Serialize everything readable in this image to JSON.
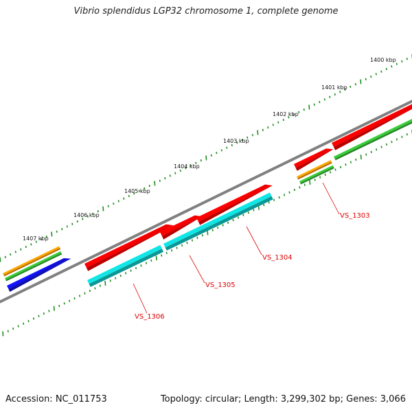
{
  "header": {
    "title": "Vibrio splendidus LGP32 chromosome 1, complete genome"
  },
  "footer": {
    "accession": "Accession: NC_011753",
    "summary": "Topology: circular; Length: 3,299,302 bp; Genes: 3,066"
  },
  "scale": {
    "unit": "kbp",
    "ticks": [
      {
        "label": "1400 kbp"
      },
      {
        "label": "1401 kbp"
      },
      {
        "label": "1402 kbp"
      },
      {
        "label": "1403 kbp"
      },
      {
        "label": "1404 kbp"
      },
      {
        "label": "1405 kbp"
      },
      {
        "label": "1406 kbp"
      },
      {
        "label": "1407 kbp"
      }
    ]
  },
  "genes": [
    {
      "label": "VS_1303"
    },
    {
      "label": "VS_1304"
    },
    {
      "label": "VS_1305"
    },
    {
      "label": "VS_1306"
    }
  ],
  "colors": {
    "backbone": "#808080",
    "tick": "#1e8c1e",
    "cds_forward": "#ff0000",
    "cds_reverse": "#10d0d0",
    "orange_track": "#ff9900",
    "green_track": "#33bb33",
    "blue_track": "#1010dd",
    "label": "#dd0000"
  }
}
